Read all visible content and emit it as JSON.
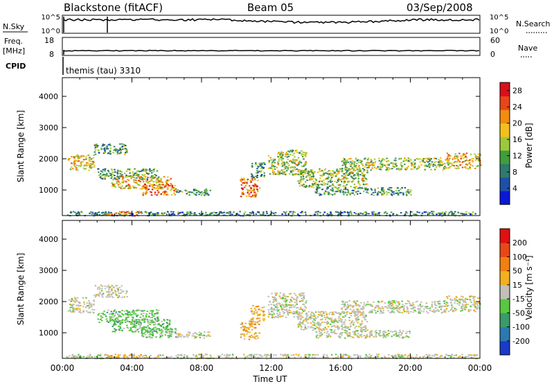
{
  "header": {
    "title": "Blackstone (fitACF)",
    "beam": "Beam 05",
    "date": "03/Sep/2008"
  },
  "top_panels": {
    "nsky_label": "N.Sky",
    "nsky_ticks": [
      "10^5",
      "10^0"
    ],
    "nsearch_ticks": [
      "10^5",
      "10^0"
    ],
    "nsearch_label": "N.Search",
    "freq_label_line1": "Freq.",
    "freq_label_line2": "[MHz]",
    "freq_ticks": [
      "18",
      "8"
    ],
    "nave_ticks": [
      "60",
      "0"
    ],
    "nave_label": "Nave",
    "cpid_label": "CPID",
    "cpid_text": "themis (tau) 3310"
  },
  "chart_data": [
    {
      "type": "heatmap",
      "name": "power",
      "ylabel": "Slant Range [km]",
      "xlabel": "Time UT",
      "xlim": [
        0,
        24
      ],
      "ylim": [
        180,
        4600
      ],
      "xticks": [
        "00:00",
        "04:00",
        "08:00",
        "12:00",
        "16:00",
        "20:00",
        "00:00"
      ],
      "yticks": [
        1000,
        2000,
        3000,
        4000
      ],
      "colorbar": {
        "label": "Power [dB]",
        "ticks": [
          4,
          8,
          12,
          16,
          20,
          24,
          28
        ],
        "range": [
          0,
          30
        ],
        "colors": [
          "#0a18d8",
          "#1f4fa8",
          "#2e7a6c",
          "#3f9e3c",
          "#9dc83a",
          "#f2c01c",
          "#f08c10",
          "#e8461a",
          "#d8101a"
        ]
      },
      "regions": [
        {
          "t0": 0.3,
          "t1": 1.8,
          "r0": 1650,
          "r1": 2150,
          "level": 18
        },
        {
          "t0": 1.8,
          "t1": 3.7,
          "r0": 2150,
          "r1": 2500,
          "level": 10
        },
        {
          "t0": 2.0,
          "t1": 5.5,
          "r0": 1350,
          "r1": 1700,
          "level": 11
        },
        {
          "t0": 2.8,
          "t1": 6.2,
          "r0": 1050,
          "r1": 1450,
          "level": 20
        },
        {
          "t0": 4.5,
          "t1": 6.5,
          "r0": 850,
          "r1": 1200,
          "level": 24
        },
        {
          "t0": 6.5,
          "t1": 8.5,
          "r0": 850,
          "r1": 1050,
          "level": 10
        },
        {
          "t0": 10.2,
          "t1": 11.3,
          "r0": 800,
          "r1": 1400,
          "level": 24
        },
        {
          "t0": 10.8,
          "t1": 11.6,
          "r0": 1400,
          "r1": 1900,
          "level": 8
        },
        {
          "t0": 11.8,
          "t1": 14.0,
          "r0": 1500,
          "r1": 2300,
          "level": 15
        },
        {
          "t0": 13.5,
          "t1": 17.5,
          "r0": 1100,
          "r1": 1700,
          "level": 14
        },
        {
          "t0": 14.5,
          "t1": 20.0,
          "r0": 850,
          "r1": 1100,
          "level": 10
        },
        {
          "t0": 16.0,
          "t1": 22.0,
          "r0": 1650,
          "r1": 2050,
          "level": 14
        },
        {
          "t0": 22.0,
          "t1": 24.0,
          "r0": 1700,
          "r1": 2200,
          "level": 20
        },
        {
          "t0": 0.2,
          "t1": 23.8,
          "r0": 190,
          "r1": 330,
          "level": 8
        },
        {
          "t0": 2.5,
          "t1": 4.5,
          "r0": 190,
          "r1": 330,
          "level": 22
        }
      ]
    },
    {
      "type": "heatmap",
      "name": "velocity",
      "ylabel": "Slant Range [km]",
      "xlabel": "Time UT",
      "xlim": [
        0,
        24
      ],
      "ylim": [
        180,
        4600
      ],
      "xticks": [
        "00:00",
        "04:00",
        "08:00",
        "12:00",
        "16:00",
        "20:00",
        "00:00"
      ],
      "yticks": [
        1000,
        2000,
        3000,
        4000
      ],
      "colorbar": {
        "label": "Velocity [m s⁻¹]",
        "ticks": [
          "200",
          "100",
          "50",
          "15",
          "-15",
          "-50",
          "-100",
          "-200"
        ],
        "colors": [
          "#1a3ac8",
          "#2a7ab0",
          "#3a9a6a",
          "#58c840",
          "#c0c0b8",
          "#f0b020",
          "#f08010",
          "#e84818",
          "#e01010"
        ]
      },
      "regions": [
        {
          "t0": 0.3,
          "t1": 1.8,
          "r0": 1650,
          "r1": 2150,
          "level": 4
        },
        {
          "t0": 1.8,
          "t1": 3.7,
          "r0": 2150,
          "r1": 2550,
          "level": 4
        },
        {
          "t0": 2.0,
          "t1": 5.5,
          "r0": 1350,
          "r1": 1750,
          "level": 3
        },
        {
          "t0": 2.8,
          "t1": 6.2,
          "r0": 1050,
          "r1": 1450,
          "level": 3
        },
        {
          "t0": 4.5,
          "t1": 6.5,
          "r0": 850,
          "r1": 1200,
          "level": 3
        },
        {
          "t0": 6.5,
          "t1": 8.5,
          "r0": 850,
          "r1": 1050,
          "level": 4
        },
        {
          "t0": 10.2,
          "t1": 11.3,
          "r0": 800,
          "r1": 1400,
          "level": 5
        },
        {
          "t0": 10.8,
          "t1": 11.6,
          "r0": 1400,
          "r1": 1900,
          "level": 5
        },
        {
          "t0": 11.8,
          "t1": 14.0,
          "r0": 1500,
          "r1": 2300,
          "level": 4
        },
        {
          "t0": 13.5,
          "t1": 17.5,
          "r0": 1100,
          "r1": 1700,
          "level": 4
        },
        {
          "t0": 14.5,
          "t1": 20.0,
          "r0": 850,
          "r1": 1100,
          "level": 4
        },
        {
          "t0": 16.0,
          "t1": 22.0,
          "r0": 1650,
          "r1": 2050,
          "level": 4
        },
        {
          "t0": 22.0,
          "t1": 24.0,
          "r0": 1700,
          "r1": 2200,
          "level": 4
        },
        {
          "t0": 0.2,
          "t1": 23.8,
          "r0": 190,
          "r1": 330,
          "level": 4
        },
        {
          "t0": 2.5,
          "t1": 4.5,
          "r0": 190,
          "r1": 330,
          "level": 5
        }
      ]
    }
  ]
}
